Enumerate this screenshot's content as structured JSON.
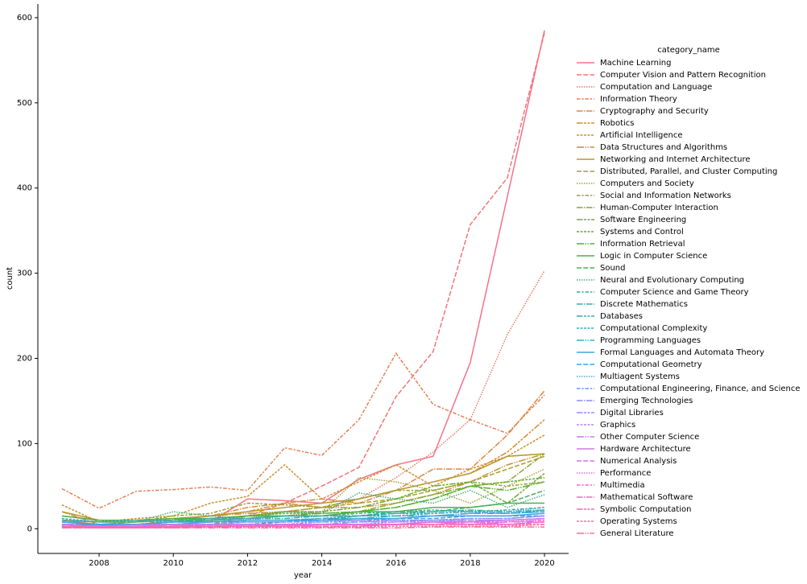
{
  "chart_data": {
    "type": "line",
    "x_label": "year",
    "y_label": "count",
    "legend_title": "category_name",
    "x": [
      2007,
      2008,
      2009,
      2010,
      2011,
      2012,
      2013,
      2014,
      2015,
      2016,
      2017,
      2018,
      2019,
      2020
    ],
    "xlim": [
      2006.35,
      2020.65
    ],
    "xticks": [
      2008,
      2010,
      2012,
      2014,
      2016,
      2018,
      2020
    ],
    "ylim": [
      -29,
      616
    ],
    "yticks": [
      0,
      100,
      200,
      300,
      400,
      500,
      600
    ],
    "series": [
      {
        "name": "Machine Learning",
        "color": "#f77189",
        "values": [
          10,
          5,
          5,
          5,
          8,
          35,
          33,
          30,
          58,
          75,
          85,
          195,
          390,
          585
        ]
      },
      {
        "name": "Computer Vision and Pattern Recognition",
        "color": "#f07678",
        "values": [
          5,
          3,
          3,
          5,
          5,
          15,
          30,
          50,
          72,
          155,
          208,
          357,
          412,
          582
        ]
      },
      {
        "name": "Computation and Language",
        "color": "#e97c66",
        "values": [
          3,
          2,
          2,
          3,
          5,
          10,
          15,
          20,
          35,
          60,
          90,
          128,
          228,
          303
        ]
      },
      {
        "name": "Information Theory",
        "color": "#e38155",
        "values": [
          47,
          24,
          44,
          46,
          49,
          45,
          95,
          86,
          128,
          206,
          146,
          128,
          112,
          157
        ]
      },
      {
        "name": "Cryptography and Security",
        "color": "#dc8743",
        "values": [
          20,
          5,
          8,
          10,
          15,
          25,
          30,
          35,
          30,
          45,
          70,
          70,
          110,
          162
        ]
      },
      {
        "name": "Robotics",
        "color": "#d58c32",
        "values": [
          5,
          3,
          5,
          10,
          15,
          20,
          30,
          25,
          35,
          45,
          55,
          65,
          90,
          128
        ]
      },
      {
        "name": "Artificial Intelligence",
        "color": "#cb9032",
        "values": [
          28,
          8,
          12,
          15,
          30,
          38,
          75,
          35,
          55,
          75,
          50,
          70,
          85,
          110
        ]
      },
      {
        "name": "Data Structures and Algorithms",
        "color": "#c19432",
        "values": [
          15,
          10,
          10,
          12,
          15,
          18,
          20,
          25,
          25,
          30,
          40,
          55,
          75,
          88
        ]
      },
      {
        "name": "Networking and Internet Architecture",
        "color": "#b89831",
        "values": [
          20,
          10,
          10,
          12,
          15,
          20,
          25,
          30,
          35,
          45,
          55,
          65,
          85,
          88
        ]
      },
      {
        "name": "Distributed, Parallel, and Cluster Computing",
        "color": "#ae9c31",
        "values": [
          10,
          8,
          8,
          10,
          12,
          15,
          20,
          25,
          30,
          35,
          45,
          55,
          70,
          85
        ]
      },
      {
        "name": "Computers and Society",
        "color": "#a4a031",
        "values": [
          8,
          5,
          8,
          10,
          10,
          15,
          20,
          20,
          60,
          55,
          45,
          30,
          50,
          70
        ]
      },
      {
        "name": "Social and Information Networks",
        "color": "#93a331",
        "values": [
          5,
          5,
          8,
          15,
          18,
          30,
          28,
          25,
          35,
          45,
          45,
          55,
          50,
          55
        ]
      },
      {
        "name": "Human-Computer Interaction",
        "color": "#82a731",
        "values": [
          5,
          3,
          5,
          8,
          10,
          12,
          15,
          15,
          20,
          30,
          40,
          50,
          55,
          88
        ]
      },
      {
        "name": "Software Engineering",
        "color": "#72aa31",
        "values": [
          10,
          8,
          8,
          10,
          12,
          15,
          20,
          20,
          25,
          35,
          50,
          55,
          30,
          65
        ]
      },
      {
        "name": "Systems and Control",
        "color": "#61ae31",
        "values": [
          8,
          5,
          5,
          8,
          12,
          15,
          18,
          18,
          20,
          25,
          35,
          50,
          55,
          60
        ]
      },
      {
        "name": "Information Retrieval",
        "color": "#50b131",
        "values": [
          5,
          5,
          5,
          8,
          10,
          12,
          15,
          18,
          20,
          25,
          35,
          50,
          45,
          55
        ]
      },
      {
        "name": "Logic in Computer Science",
        "color": "#4bb048",
        "values": [
          15,
          10,
          10,
          12,
          12,
          15,
          15,
          15,
          20,
          20,
          25,
          25,
          30,
          30
        ]
      },
      {
        "name": "Sound",
        "color": "#46af5f",
        "values": [
          3,
          2,
          2,
          3,
          5,
          5,
          8,
          10,
          15,
          20,
          20,
          25,
          30,
          45
        ]
      },
      {
        "name": "Neural and Evolutionary Computing",
        "color": "#40af76",
        "values": [
          10,
          8,
          8,
          20,
          15,
          12,
          20,
          18,
          42,
          35,
          30,
          45,
          25,
          40
        ]
      },
      {
        "name": "Computer Science and Game Theory",
        "color": "#3bae8d",
        "values": [
          5,
          5,
          5,
          8,
          10,
          12,
          15,
          15,
          18,
          20,
          22,
          20,
          22,
          25
        ]
      },
      {
        "name": "Discrete Mathematics",
        "color": "#36ada4",
        "values": [
          10,
          8,
          8,
          10,
          10,
          12,
          12,
          15,
          15,
          18,
          20,
          22,
          20,
          22
        ]
      },
      {
        "name": "Databases",
        "color": "#37abb2",
        "values": [
          8,
          5,
          5,
          8,
          8,
          10,
          10,
          12,
          15,
          15,
          18,
          20,
          18,
          22
        ]
      },
      {
        "name": "Computational Complexity",
        "color": "#38a9c1",
        "values": [
          12,
          8,
          10,
          10,
          12,
          12,
          15,
          15,
          15,
          18,
          18,
          20,
          18,
          20
        ]
      },
      {
        "name": "Programming Languages",
        "color": "#39a7cf",
        "values": [
          8,
          5,
          5,
          8,
          8,
          10,
          10,
          12,
          12,
          15,
          15,
          18,
          18,
          20
        ]
      },
      {
        "name": "Formal Languages and Automata Theory",
        "color": "#3aa5de",
        "values": [
          8,
          5,
          5,
          8,
          8,
          10,
          10,
          10,
          12,
          12,
          15,
          15,
          15,
          18
        ]
      },
      {
        "name": "Computational Geometry",
        "color": "#3ba3ec",
        "values": [
          5,
          5,
          5,
          5,
          8,
          8,
          8,
          10,
          10,
          12,
          12,
          15,
          15,
          15
        ]
      },
      {
        "name": "Multiagent Systems",
        "color": "#559dee",
        "values": [
          5,
          3,
          5,
          5,
          5,
          8,
          8,
          10,
          10,
          12,
          15,
          18,
          20,
          25
        ]
      },
      {
        "name": "Computational Engineering, Finance, and Science",
        "color": "#6e96ef",
        "values": [
          3,
          2,
          3,
          3,
          5,
          5,
          5,
          8,
          8,
          10,
          10,
          12,
          12,
          15
        ]
      },
      {
        "name": "Emerging Technologies",
        "color": "#8890f1",
        "values": [
          3,
          2,
          3,
          3,
          3,
          5,
          5,
          5,
          8,
          8,
          10,
          10,
          10,
          12
        ]
      },
      {
        "name": "Digital Libraries",
        "color": "#a189f2",
        "values": [
          5,
          3,
          5,
          5,
          5,
          8,
          8,
          8,
          10,
          10,
          10,
          12,
          12,
          15
        ]
      },
      {
        "name": "Graphics",
        "color": "#bb83f4",
        "values": [
          2,
          2,
          2,
          3,
          3,
          3,
          5,
          5,
          5,
          8,
          8,
          10,
          10,
          12
        ]
      },
      {
        "name": "Other Computer Science",
        "color": "#c77dee",
        "values": [
          5,
          3,
          3,
          5,
          5,
          5,
          5,
          5,
          5,
          5,
          8,
          5,
          8,
          8
        ]
      },
      {
        "name": "Hardware Architecture",
        "color": "#d277e7",
        "values": [
          2,
          2,
          2,
          2,
          3,
          3,
          3,
          5,
          5,
          5,
          8,
          8,
          10,
          12
        ]
      },
      {
        "name": "Numerical Analysis",
        "color": "#de70e1",
        "values": [
          3,
          2,
          2,
          3,
          3,
          3,
          5,
          5,
          5,
          5,
          8,
          8,
          5,
          8
        ]
      },
      {
        "name": "Performance",
        "color": "#e96ada",
        "values": [
          5,
          3,
          3,
          5,
          5,
          5,
          5,
          5,
          5,
          5,
          8,
          5,
          8,
          10
        ]
      },
      {
        "name": "Multimedia",
        "color": "#f564d4",
        "values": [
          3,
          2,
          2,
          3,
          3,
          3,
          5,
          5,
          5,
          5,
          5,
          8,
          8,
          10
        ]
      },
      {
        "name": "Mathematical Software",
        "color": "#f567c5",
        "values": [
          2,
          1,
          1,
          2,
          2,
          3,
          3,
          3,
          3,
          5,
          5,
          5,
          5,
          8
        ]
      },
      {
        "name": "Symbolic Computation",
        "color": "#f669b6",
        "values": [
          3,
          2,
          2,
          3,
          3,
          3,
          3,
          3,
          3,
          5,
          5,
          5,
          5,
          5
        ]
      },
      {
        "name": "Operating Systems",
        "color": "#f66ca7",
        "values": [
          1,
          1,
          1,
          1,
          2,
          2,
          2,
          2,
          2,
          3,
          3,
          3,
          3,
          5
        ]
      },
      {
        "name": "General Literature",
        "color": "#f76e98",
        "values": [
          1,
          1,
          1,
          1,
          1,
          1,
          1,
          1,
          1,
          1,
          2,
          2,
          2,
          2
        ]
      }
    ]
  }
}
